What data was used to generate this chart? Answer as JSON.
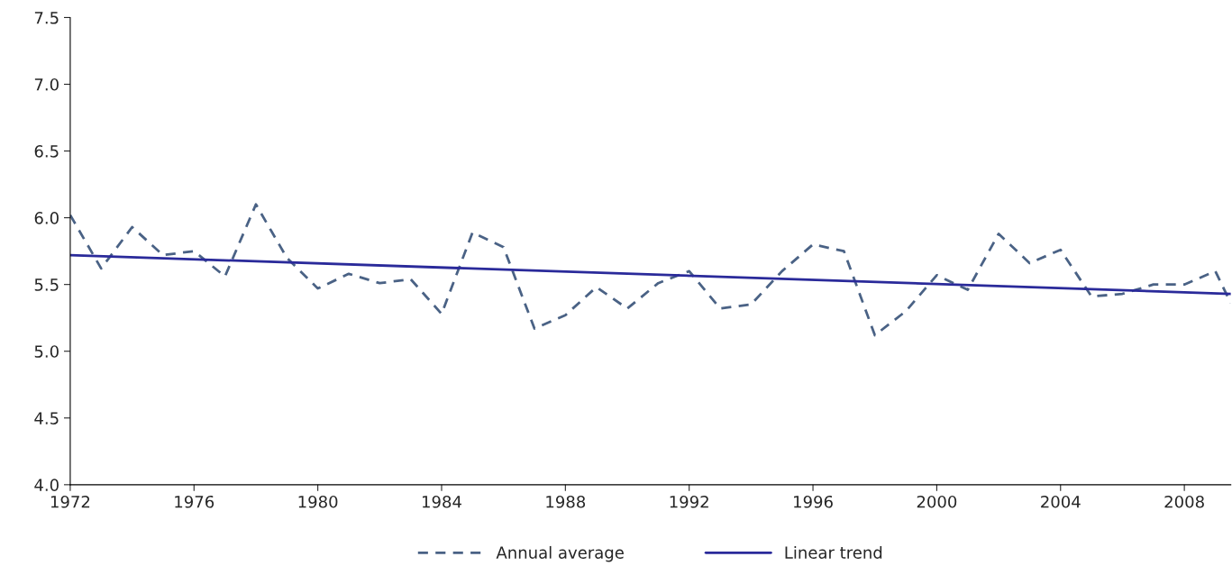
{
  "chart_data": {
    "type": "line",
    "legend": "bottom",
    "grid": false,
    "xlim": [
      1972,
      2009.5
    ],
    "xticks": [
      1972,
      1976,
      1980,
      1984,
      1988,
      1992,
      1996,
      2000,
      2004,
      2008
    ],
    "ylim": [
      4.0,
      7.5
    ],
    "yticks": [
      {
        "value": 4.0,
        "label": "4.0"
      },
      {
        "value": 4.5,
        "label": "4.5"
      },
      {
        "value": 5.0,
        "label": "5.0"
      },
      {
        "value": 5.5,
        "label": "5.5"
      },
      {
        "value": 6.0,
        "label": "6.0"
      },
      {
        "value": 6.5,
        "label": "6.5"
      },
      {
        "value": 7.0,
        "label": "7.0"
      },
      {
        "value": 7.5,
        "label": "7.5"
      }
    ],
    "series": [
      {
        "name": "Annual average",
        "color": "#4a6285",
        "line_style": "dashed",
        "x": [
          1972,
          1973,
          1974,
          1975,
          1976,
          1977,
          1978,
          1979,
          1980,
          1981,
          1982,
          1983,
          1984,
          1985,
          1986,
          1987,
          1988,
          1989,
          1990,
          1991,
          1992,
          1993,
          1994,
          1995,
          1996,
          1997,
          1998,
          1999,
          2000,
          2001,
          2002,
          2003,
          2004,
          2005,
          2006,
          2007,
          2008,
          2009,
          2009.5
        ],
        "values": [
          6.02,
          5.62,
          5.93,
          5.72,
          5.75,
          5.56,
          6.1,
          5.7,
          5.47,
          5.58,
          5.51,
          5.54,
          5.28,
          5.89,
          5.78,
          5.17,
          5.27,
          5.48,
          5.32,
          5.51,
          5.6,
          5.32,
          5.35,
          5.6,
          5.8,
          5.75,
          5.12,
          5.3,
          5.57,
          5.46,
          5.88,
          5.66,
          5.76,
          5.41,
          5.43,
          5.5,
          5.5,
          5.6,
          5.36
        ]
      },
      {
        "name": "Linear trend",
        "color": "#2a2a9a",
        "line_style": "solid",
        "x": [
          1972,
          2009.5
        ],
        "values": [
          5.72,
          5.43
        ]
      }
    ]
  }
}
